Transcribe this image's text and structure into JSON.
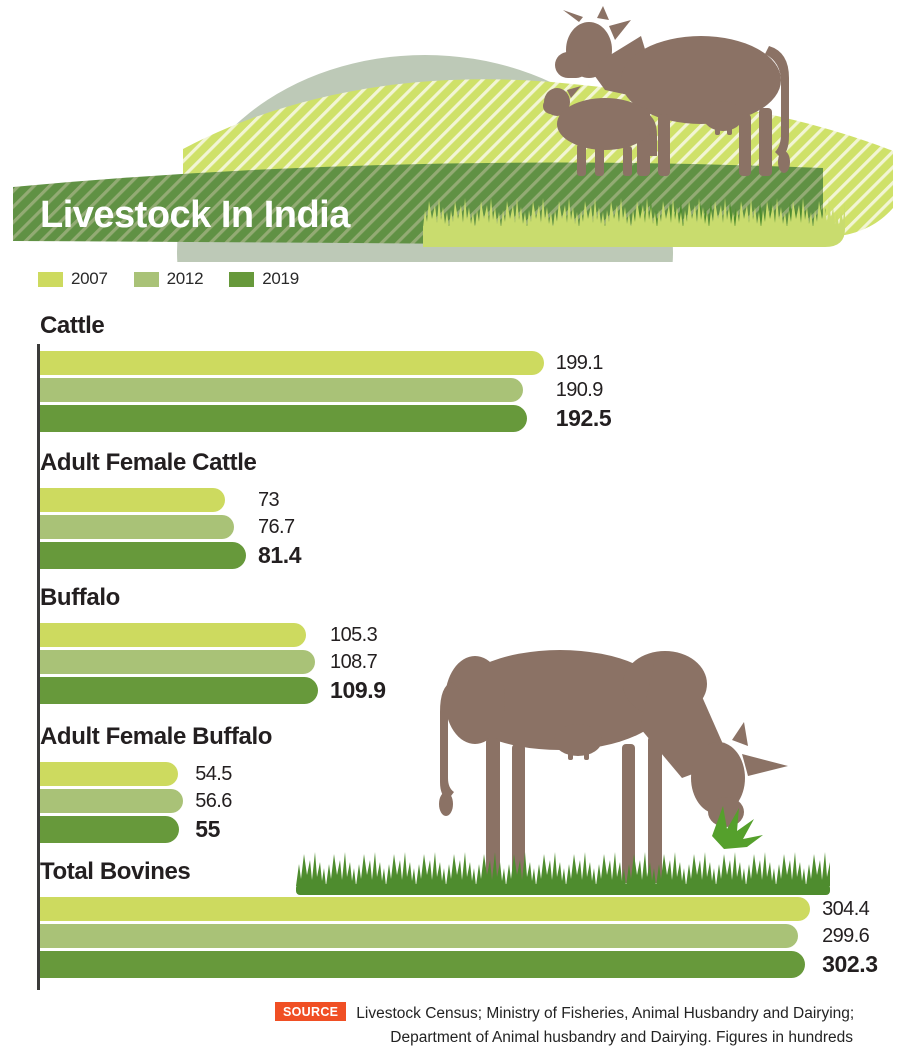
{
  "title": "Livestock In India",
  "legend": [
    {
      "year": "2007",
      "color": "#cdda5f"
    },
    {
      "year": "2012",
      "color": "#a9c277"
    },
    {
      "year": "2019",
      "color": "#67993b"
    }
  ],
  "chart_data": {
    "type": "bar",
    "orientation": "horizontal",
    "title": "Livestock In India",
    "unit_note": "Figures in hundreds",
    "series_years": [
      "2007",
      "2012",
      "2019"
    ],
    "series_colors": [
      "#cdda5f",
      "#a9c277",
      "#67993b"
    ],
    "groups": [
      {
        "label": "Cattle",
        "values": [
          199.1,
          190.9,
          192.5
        ]
      },
      {
        "label": "Adult Female Cattle",
        "values": [
          73,
          76.7,
          81.4
        ]
      },
      {
        "label": "Buffalo",
        "values": [
          105.3,
          108.7,
          109.9
        ]
      },
      {
        "label": "Adult Female Buffalo",
        "values": [
          54.5,
          56.6,
          55
        ]
      },
      {
        "label": "Total Bovines",
        "values": [
          304.4,
          299.6,
          302.3
        ]
      }
    ]
  },
  "source": {
    "badge": "SOURCE",
    "badge_color": "#f04f24",
    "line1": "Livestock Census; Ministry of Fisheries, Animal Husbandry and Dairying;",
    "line2": "Department of Animal husbandry and Dairying. Figures in hundreds"
  },
  "art": {
    "cow": "#8b7265",
    "band_green": "#609144",
    "band_stripe": "#93ab74",
    "hill_light": "#cfe169",
    "hill_stripe": "#f2f5d4",
    "hill_gray": "#bdc9b7",
    "grass_light": "#c9dc6e",
    "grass_dark": "#4e8c2e",
    "grass_bite": "#55a02c"
  }
}
